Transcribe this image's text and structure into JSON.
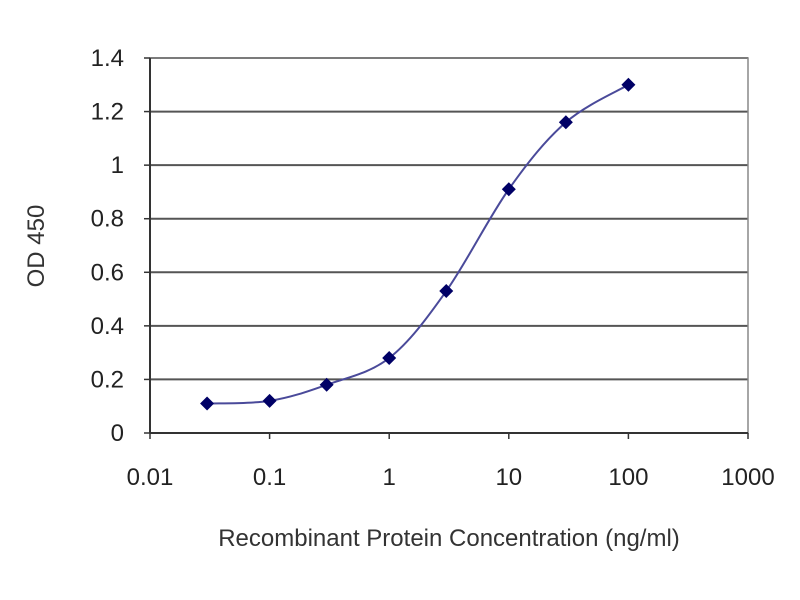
{
  "chart_data": {
    "type": "line",
    "title": "",
    "xlabel": "Recombinant Protein Concentration (ng/ml)",
    "ylabel": "OD 450",
    "xscale": "log",
    "xlim": [
      0.01,
      1000
    ],
    "ylim": [
      0,
      1.4
    ],
    "grid": "horizontal",
    "xticks": [
      "0.01",
      "0.1",
      "1",
      "10",
      "100",
      "1000"
    ],
    "xtick_values": [
      0.01,
      0.1,
      1,
      10,
      100,
      1000
    ],
    "yticks": [
      "0",
      "0.2",
      "0.4",
      "0.6",
      "0.8",
      "1",
      "1.2",
      "1.4"
    ],
    "ytick_values": [
      0,
      0.2,
      0.4,
      0.6,
      0.8,
      1,
      1.2,
      1.4
    ],
    "series": [
      {
        "x": [
          0.03,
          0.1,
          0.3,
          1,
          3,
          10,
          30,
          100
        ],
        "y": [
          0.11,
          0.12,
          0.18,
          0.28,
          0.53,
          0.91,
          1.16,
          1.3
        ],
        "color": "#000066",
        "line_color": "#4a4a9a",
        "marker": "diamond"
      }
    ]
  }
}
